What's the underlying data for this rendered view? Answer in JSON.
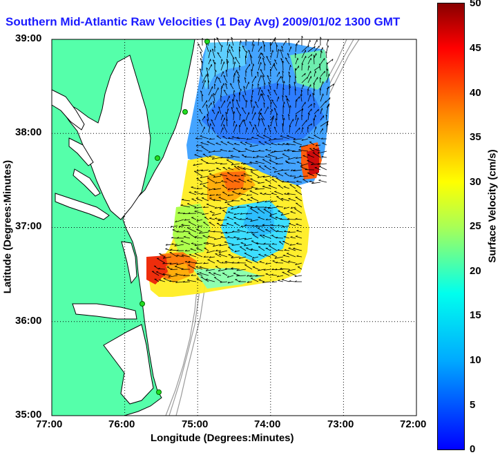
{
  "title": "Southern Mid-Atlantic Raw Velocities (1 Day Avg) 2009/01/02 1300 GMT",
  "x_axis": {
    "label": "Longitude (Degrees:Minutes)",
    "ticks": [
      "77:00",
      "76:00",
      "75:00",
      "74:00",
      "73:00",
      "72:00"
    ]
  },
  "y_axis": {
    "label": "Latitude (Degrees:Minutes)",
    "ticks": [
      "39:00",
      "38:00",
      "37:00",
      "36:00",
      "35:00"
    ]
  },
  "colorbar": {
    "label": "Surface Velocity (cm/s)",
    "ticks": [
      "50",
      "45",
      "40",
      "35",
      "30",
      "25",
      "20",
      "15",
      "10",
      "5",
      "0"
    ],
    "range": [
      0,
      50
    ],
    "colormap": "jet"
  },
  "colors": {
    "land": "#55ffaa",
    "coast": "#000000",
    "bathymetry": "#999999",
    "title": "#1a1aff",
    "site_marker": "#22dd22"
  },
  "extent": {
    "lon": [
      -77,
      -72
    ],
    "lat": [
      35,
      39
    ]
  },
  "grid": "dotted"
}
